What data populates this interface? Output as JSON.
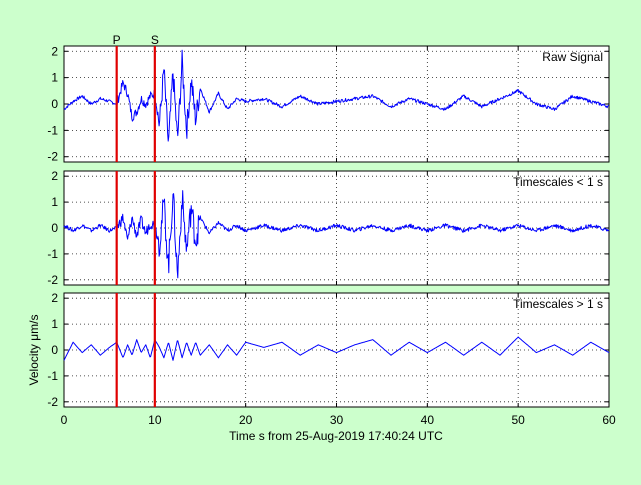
{
  "chart_data": {
    "type": "line",
    "xlabel": "Time s from 25-Aug-2019 17:40:24 UTC",
    "ylabel": "Velocity μm/s",
    "xlim": [
      0,
      60
    ],
    "xticks": [
      0,
      10,
      20,
      30,
      40,
      50,
      60
    ],
    "grid": true,
    "colors": {
      "trace": "#0000ff",
      "marker": "#e00000",
      "background": "#ccffcc"
    },
    "markers": [
      {
        "label": "P",
        "x": 5.8
      },
      {
        "label": "S",
        "x": 10.0
      }
    ],
    "panels": [
      {
        "title": "Raw Signal",
        "ylim": [
          -2.2,
          2.2
        ],
        "yticks": [
          -2,
          -1,
          0,
          1,
          2
        ],
        "x": [
          0,
          1,
          2,
          3,
          4,
          5,
          5.8,
          6.5,
          7,
          7.5,
          8,
          8.5,
          9,
          9.5,
          10,
          10.5,
          11,
          11.5,
          12,
          12.5,
          13,
          13.5,
          14,
          14.5,
          15,
          16,
          17,
          18,
          19,
          20,
          22,
          24,
          26,
          28,
          30,
          32,
          34,
          36,
          38,
          40,
          42,
          44,
          46,
          48,
          50,
          52,
          54,
          56,
          58,
          60
        ],
        "values": [
          -0.2,
          0.1,
          0.3,
          0.0,
          0.2,
          0.1,
          0.0,
          0.8,
          0.4,
          -0.5,
          -0.3,
          0.2,
          0.0,
          0.3,
          0.4,
          -0.8,
          1.3,
          -1.6,
          1.2,
          -1.4,
          1.6,
          -1.0,
          0.9,
          -0.6,
          0.6,
          -0.3,
          0.4,
          -0.2,
          0.2,
          0.1,
          0.2,
          -0.1,
          0.3,
          0.0,
          0.1,
          0.2,
          0.3,
          -0.1,
          0.2,
          0.0,
          -0.2,
          0.3,
          -0.1,
          0.2,
          0.5,
          0.0,
          -0.2,
          0.3,
          0.1,
          -0.1
        ]
      },
      {
        "title": "Timescales < 1 s",
        "ylim": [
          -2.2,
          2.2
        ],
        "yticks": [
          -2,
          -1,
          0,
          1,
          2
        ],
        "x": [
          0,
          1,
          2,
          3,
          4,
          5,
          5.8,
          6.5,
          7,
          7.5,
          8,
          8.5,
          9,
          9.5,
          10,
          10.5,
          11,
          11.5,
          12,
          12.5,
          13,
          13.5,
          14,
          14.5,
          15,
          16,
          17,
          18,
          19,
          20,
          22,
          24,
          26,
          28,
          30,
          32,
          34,
          36,
          38,
          40,
          42,
          44,
          46,
          48,
          50,
          52,
          54,
          56,
          58,
          60
        ],
        "values": [
          0.1,
          -0.1,
          0.1,
          -0.1,
          0.1,
          -0.1,
          0.0,
          0.4,
          -0.5,
          0.4,
          -0.3,
          0.3,
          -0.2,
          0.2,
          0.1,
          -0.6,
          1.0,
          -1.5,
          1.4,
          -1.9,
          1.2,
          -0.9,
          0.8,
          -0.5,
          0.4,
          -0.2,
          0.2,
          -0.1,
          0.1,
          -0.1,
          0.1,
          -0.1,
          0.1,
          -0.1,
          0.1,
          -0.1,
          0.1,
          -0.1,
          0.1,
          -0.1,
          0.1,
          -0.1,
          0.1,
          -0.1,
          0.1,
          -0.1,
          0.1,
          -0.1,
          0.1,
          -0.1
        ]
      },
      {
        "title": "Timescales > 1 s",
        "ylim": [
          -2.2,
          2.2
        ],
        "yticks": [
          -2,
          -1,
          0,
          1,
          2
        ],
        "x": [
          0,
          1,
          2,
          3,
          4,
          5,
          5.8,
          6.5,
          7,
          7.5,
          8,
          8.5,
          9,
          9.5,
          10,
          10.5,
          11,
          11.5,
          12,
          12.5,
          13,
          13.5,
          14,
          14.5,
          15,
          16,
          17,
          18,
          19,
          20,
          22,
          24,
          26,
          28,
          30,
          32,
          34,
          36,
          38,
          40,
          42,
          44,
          46,
          48,
          50,
          52,
          54,
          56,
          58,
          60
        ],
        "values": [
          -0.4,
          0.3,
          -0.1,
          0.2,
          -0.2,
          0.1,
          0.3,
          -0.3,
          0.2,
          -0.2,
          0.4,
          -0.1,
          0.2,
          -0.3,
          0.4,
          0.1,
          -0.3,
          0.3,
          -0.4,
          0.4,
          -0.3,
          0.3,
          -0.2,
          0.3,
          -0.2,
          0.2,
          -0.3,
          0.2,
          -0.2,
          0.3,
          0.1,
          0.3,
          -0.2,
          0.2,
          -0.1,
          0.2,
          0.4,
          -0.2,
          0.3,
          -0.1,
          0.3,
          -0.2,
          0.3,
          -0.2,
          0.5,
          -0.1,
          0.2,
          -0.2,
          0.3,
          -0.1
        ]
      }
    ]
  }
}
